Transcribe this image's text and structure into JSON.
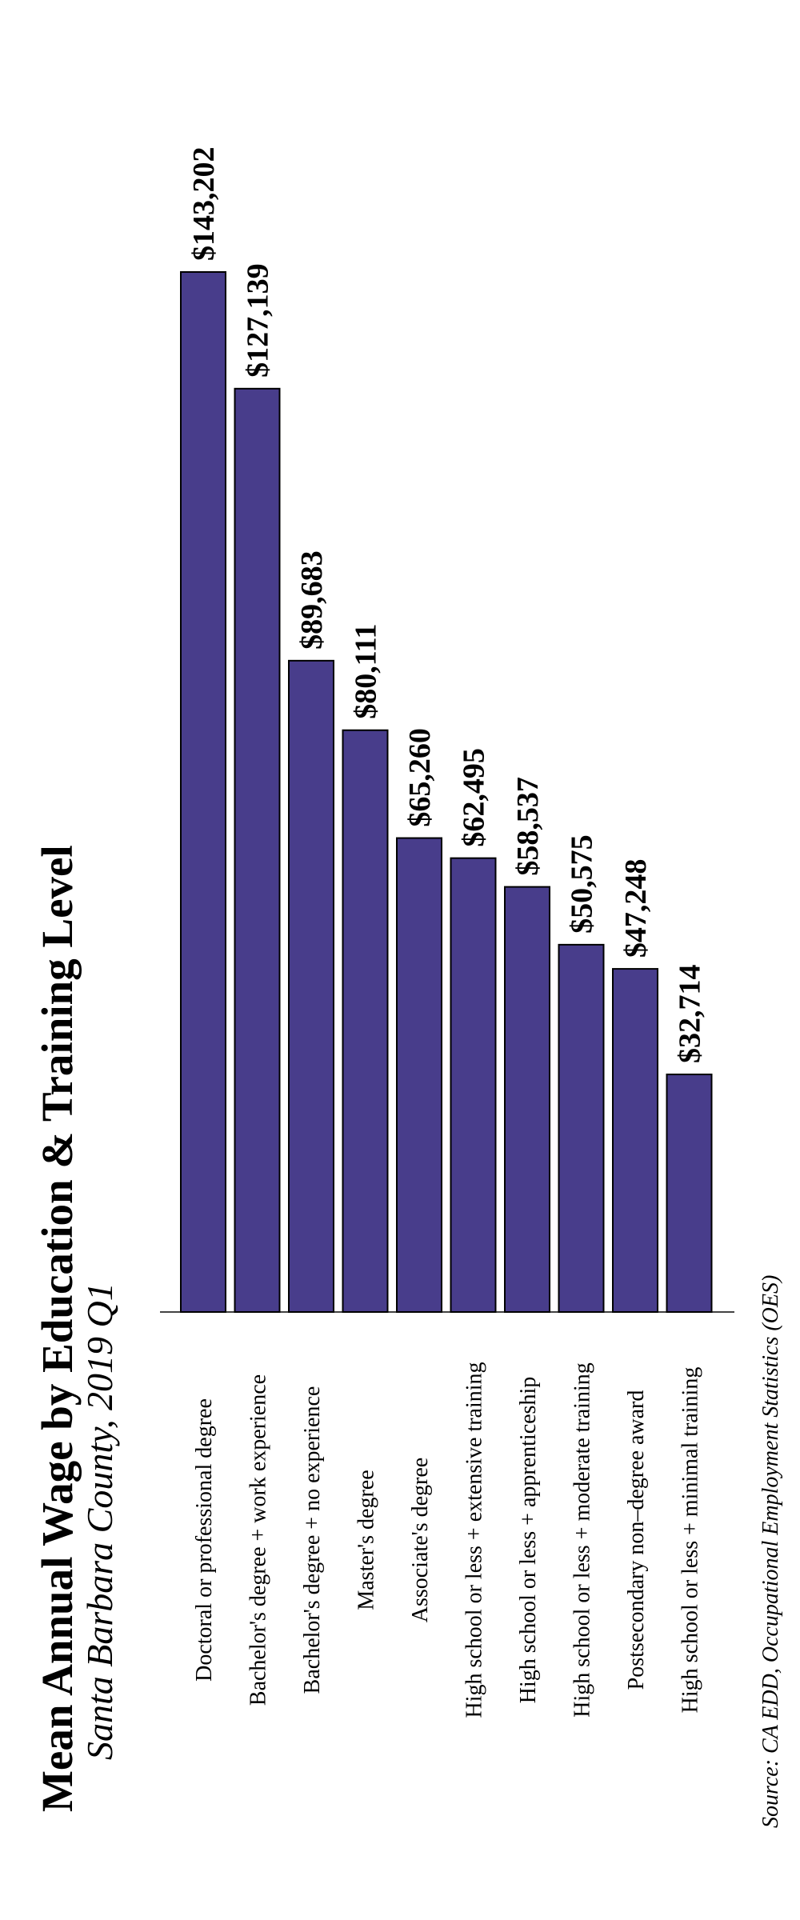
{
  "chart_data": {
    "type": "bar",
    "orientation": "vertical-bars, figure rotated 90 degrees counter-clockwise",
    "title": "Mean Annual Wage by Education & Training Level",
    "subtitle_place": "Santa Barbara County",
    "subtitle_period": "2019 Q1",
    "source": "Source: CA EDD, Occupational Employment Statistics (OES)",
    "bar_color": "#483D8B",
    "categories": [
      "Doctoral or professional degree",
      "Bachelor's degree + work experience",
      "Bachelor's degree + no experience",
      "Master's degree",
      "Associate's degree",
      "High school or less + extensive training",
      "High school or less + apprenticeship",
      "High school or less + moderate training",
      "Postsecondary non–degree award",
      "High school or less + minimal training"
    ],
    "values": [
      143202,
      127139,
      89683,
      80111,
      65260,
      62495,
      58537,
      50575,
      47248,
      32714
    ],
    "value_labels": [
      "$143,202",
      "$127,139",
      "$89,683",
      "$80,111",
      "$65,260",
      "$62,495",
      "$58,537",
      "$50,575",
      "$47,248",
      "$32,714"
    ],
    "ylim": [
      0,
      143202
    ],
    "grid": false
  }
}
